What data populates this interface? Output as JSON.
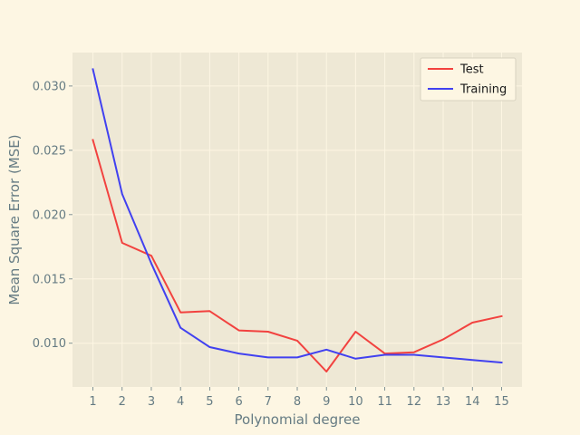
{
  "chart_data": {
    "type": "line",
    "title": "",
    "xlabel": "Polynomial degree",
    "ylabel": "Mean Square Error (MSE)",
    "x": [
      1,
      2,
      3,
      4,
      5,
      6,
      7,
      8,
      9,
      10,
      11,
      12,
      13,
      14,
      15
    ],
    "x_ticks": [
      "1",
      "2",
      "3",
      "4",
      "5",
      "6",
      "7",
      "8",
      "9",
      "10",
      "11",
      "12",
      "13",
      "14",
      "15"
    ],
    "y_ticks": [
      0.01,
      0.015,
      0.02,
      0.025,
      0.03
    ],
    "y_tick_labels": [
      "0.010",
      "0.015",
      "0.020",
      "0.025",
      "0.030"
    ],
    "xlim": [
      0.3,
      15.7
    ],
    "ylim": [
      0.0066,
      0.0326
    ],
    "grid": true,
    "legend": "top-right",
    "series": [
      {
        "name": "Test",
        "color": "#f2423f",
        "values": [
          0.0258,
          0.0178,
          0.0168,
          0.0124,
          0.0125,
          0.011,
          0.0109,
          0.0102,
          0.0078,
          0.0109,
          0.0092,
          0.0093,
          0.0103,
          0.0116,
          0.0121
        ]
      },
      {
        "name": "Training",
        "color": "#4141f0",
        "values": [
          0.0313,
          0.0216,
          0.0162,
          0.0112,
          0.0097,
          0.0092,
          0.0089,
          0.0089,
          0.0095,
          0.0088,
          0.0091,
          0.0091,
          0.0089,
          0.0087,
          0.0085
        ]
      }
    ]
  }
}
